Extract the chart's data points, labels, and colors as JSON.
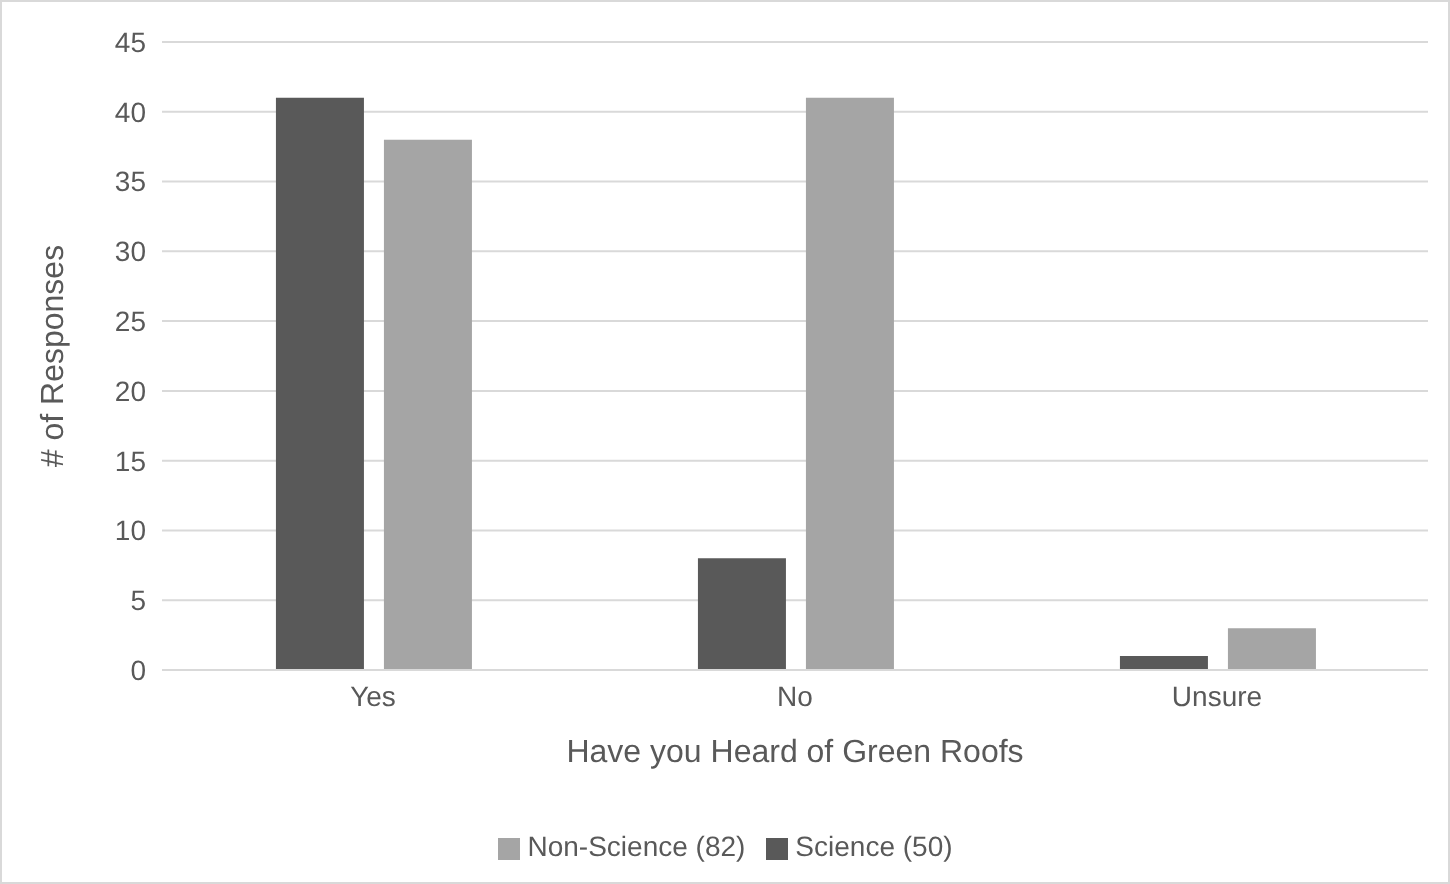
{
  "chart_data": {
    "type": "bar",
    "xlabel": "Have you Heard of Green Roofs",
    "ylabel": "# of Responses",
    "categories": [
      "Yes",
      "No",
      "Unsure"
    ],
    "series": [
      {
        "name": "Science (50)",
        "color": "#595959",
        "values": [
          41,
          8,
          1
        ]
      },
      {
        "name": "Non-Science (82)",
        "color": "#a5a5a5",
        "values": [
          38,
          41,
          3
        ]
      }
    ],
    "ylim": [
      0,
      45
    ],
    "yticks": [
      0,
      5,
      10,
      15,
      20,
      25,
      30,
      35,
      40,
      45
    ],
    "grid": "y",
    "legend": "bottom"
  }
}
